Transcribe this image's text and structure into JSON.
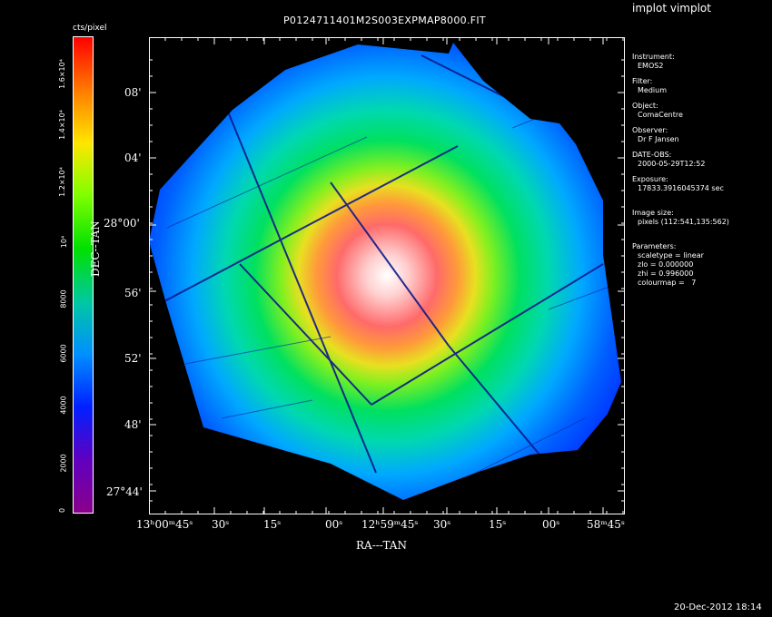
{
  "tool_title": "implot vimplot",
  "plot_title": "P0124711401M2S003EXPMAP8000.FIT",
  "colorbar": {
    "unit": "cts/pixel",
    "ticks": [
      "0",
      "2000",
      "4000",
      "6000",
      "8000",
      "10⁴",
      "1.2×10⁴",
      "1.4×10⁴",
      "1.6×10⁴"
    ],
    "colors": [
      "#ff0000",
      "#ff7a00",
      "#ffe600",
      "#7fff00",
      "#00e000",
      "#00c8a0",
      "#0090ff",
      "#0020ff",
      "#6000c0",
      "#8a008a"
    ]
  },
  "axes": {
    "xlabel": "RA---TAN",
    "ylabel": "DEC--TAN",
    "yticks": [
      "08'",
      "04'",
      "28°00'",
      "56'",
      "52'",
      "48'",
      "27°44'"
    ],
    "xticks": [
      "13ʰ00ᵐ45ˢ",
      "30ˢ",
      "15ˢ",
      "00ˢ",
      "12ʰ59ᵐ45ˢ",
      "30ˢ",
      "15ˢ",
      "00ˢ",
      "58ᵐ45ˢ"
    ]
  },
  "info_panel": [
    {
      "label": "Instrument:",
      "values": [
        "EMOS2"
      ]
    },
    {
      "label": "Filter:",
      "values": [
        "Medium"
      ]
    },
    {
      "label": "Object:",
      "values": [
        "ComaCentre"
      ]
    },
    {
      "label": "Observer:",
      "values": [
        "Dr F Jansen"
      ]
    },
    {
      "label": "DATE-OBS:",
      "values": [
        "2000-05-29T12:52"
      ]
    },
    {
      "label": "Exposure:",
      "values": [
        "17833.3916045374 sec"
      ]
    },
    {
      "label": "Image size:",
      "values": [
        "pixels (112:541,135:562)"
      ]
    },
    {
      "label": "Parameters:",
      "values": [
        "scaletype = linear",
        "zlo = 0.000000",
        "zhi = 0.996000",
        "colourmap =   7"
      ]
    }
  ],
  "timestamp": "20-Dec-2012 18:14"
}
